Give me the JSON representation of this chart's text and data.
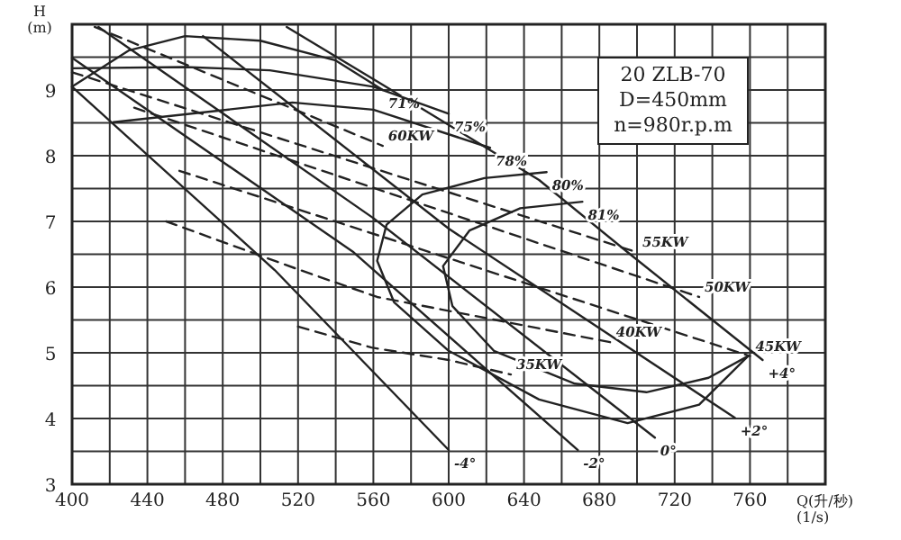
{
  "chart_data": {
    "type": "line",
    "xlabel": "Q(升/秒)\n(1/s)",
    "ylabel": "H\n(m)",
    "xlim": [
      400,
      800
    ],
    "ylim": [
      3,
      10
    ],
    "xticks": [
      400,
      {
        "value": 420,
        "label": null
      },
      440,
      {
        "value": 460,
        "label": null
      },
      480,
      {
        "value": 500,
        "label": null
      },
      520,
      {
        "value": 540,
        "label": null
      },
      560,
      {
        "value": 580,
        "label": null
      },
      600,
      {
        "value": 620,
        "label": null
      },
      640,
      {
        "value": 660,
        "label": null
      },
      680,
      {
        "value": 700,
        "label": null
      },
      720,
      {
        "value": 740,
        "label": null
      },
      760,
      {
        "value": 780,
        "label": null
      }
    ],
    "yticks": [
      3,
      {
        "value": 3.5,
        "label": null
      },
      4,
      {
        "value": 4.5,
        "label": null
      },
      5,
      {
        "value": 5.5,
        "label": null
      },
      6,
      {
        "value": 6.5,
        "label": null
      },
      7,
      {
        "value": 7.5,
        "label": null
      },
      8,
      {
        "value": 8.5,
        "label": null
      },
      9,
      {
        "value": 9.5,
        "label": null
      }
    ],
    "grid": true,
    "annotations": [
      "20  ZLB-70",
      "D=450mm",
      "n=980r.p.m"
    ],
    "series": [
      {
        "name": "-4°",
        "color": "#222222",
        "line_style": "solid",
        "x": [
          400,
          507.6,
          600
        ],
        "values": [
          9.05,
          6.26,
          3.52
        ]
      },
      {
        "name": "-2°",
        "color": "#222222",
        "line_style": "solid",
        "x": [
          400,
          549.5,
          668.6
        ],
        "values": [
          9.49,
          6.53,
          3.52
        ]
      },
      {
        "name": "0°",
        "color": "#222222",
        "line_style": "solid",
        "x": [
          414,
          560,
          709.5
        ],
        "values": [
          9.96,
          7.05,
          3.71
        ]
      },
      {
        "name": "+2°",
        "color": "#222222",
        "line_style": "solid",
        "x": [
          469.5,
          600,
          752
        ],
        "values": [
          9.82,
          6.89,
          4.01
        ]
      },
      {
        "name": "+4°",
        "color": "#222222",
        "line_style": "solid",
        "x": [
          514,
          565,
          648,
          695,
          766.7
        ],
        "values": [
          9.96,
          9.08,
          7.63,
          6.53,
          4.89
        ]
      },
      {
        "name": "71%",
        "color": "#222222",
        "line_style": "solid",
        "x": [
          400,
          430,
          460,
          500,
          540,
          565
        ],
        "values": [
          9.05,
          9.6,
          9.82,
          9.75,
          9.45,
          9.0
        ]
      },
      {
        "name": "75%",
        "color": "#222222",
        "line_style": "solid",
        "x": [
          400,
          460,
          505,
          560,
          600
        ],
        "values": [
          9.33,
          9.35,
          9.3,
          9.05,
          8.64
        ]
      },
      {
        "name": "78%",
        "color": "#222222",
        "line_style": "solid",
        "x": [
          422,
          517,
          560,
          622
        ],
        "values": [
          8.51,
          8.81,
          8.7,
          8.12
        ]
      },
      {
        "name": "80%",
        "color": "#222222",
        "line_style": "solid",
        "x": [
          759,
          733,
          695,
          648,
          600,
          571,
          562,
          567,
          586,
          619,
          652
        ],
        "values": [
          4.95,
          4.21,
          3.93,
          4.29,
          5.03,
          5.77,
          6.4,
          6.95,
          7.41,
          7.66,
          7.75
        ]
      },
      {
        "name": "81%",
        "color": "#222222",
        "line_style": "solid",
        "x": [
          759,
          738,
          705,
          667,
          624,
          602,
          597,
          611,
          638,
          671
        ],
        "values": [
          4.95,
          4.62,
          4.4,
          4.53,
          5.03,
          5.71,
          6.32,
          6.86,
          7.2,
          7.3
        ]
      },
      {
        "name": "60KW",
        "color": "#222222",
        "line_style": "dashed",
        "x": [
          412,
          565
        ],
        "values": [
          9.96,
          8.15
        ]
      },
      {
        "name": "55KW",
        "color": "#222222",
        "line_style": "dashed",
        "x": [
          400,
          700
        ],
        "values": [
          9.27,
          6.53
        ]
      },
      {
        "name": "50KW",
        "color": "#222222",
        "line_style": "dashed",
        "x": [
          433,
          733
        ],
        "values": [
          8.73,
          5.85
        ]
      },
      {
        "name": "45KW",
        "color": "#222222",
        "line_style": "dashed",
        "x": [
          457,
          760
        ],
        "values": [
          7.77,
          4.95
        ]
      },
      {
        "name": "40KW",
        "color": "#222222",
        "line_style": "dashed",
        "x": [
          450,
          521,
          562,
          686
        ],
        "values": [
          7.0,
          6.26,
          5.85,
          5.16
        ]
      },
      {
        "name": "35KW",
        "color": "#222222",
        "line_style": "dashed",
        "x": [
          520,
          559,
          600,
          633
        ],
        "values": [
          5.4,
          5.08,
          4.89,
          4.67
        ]
      }
    ]
  }
}
